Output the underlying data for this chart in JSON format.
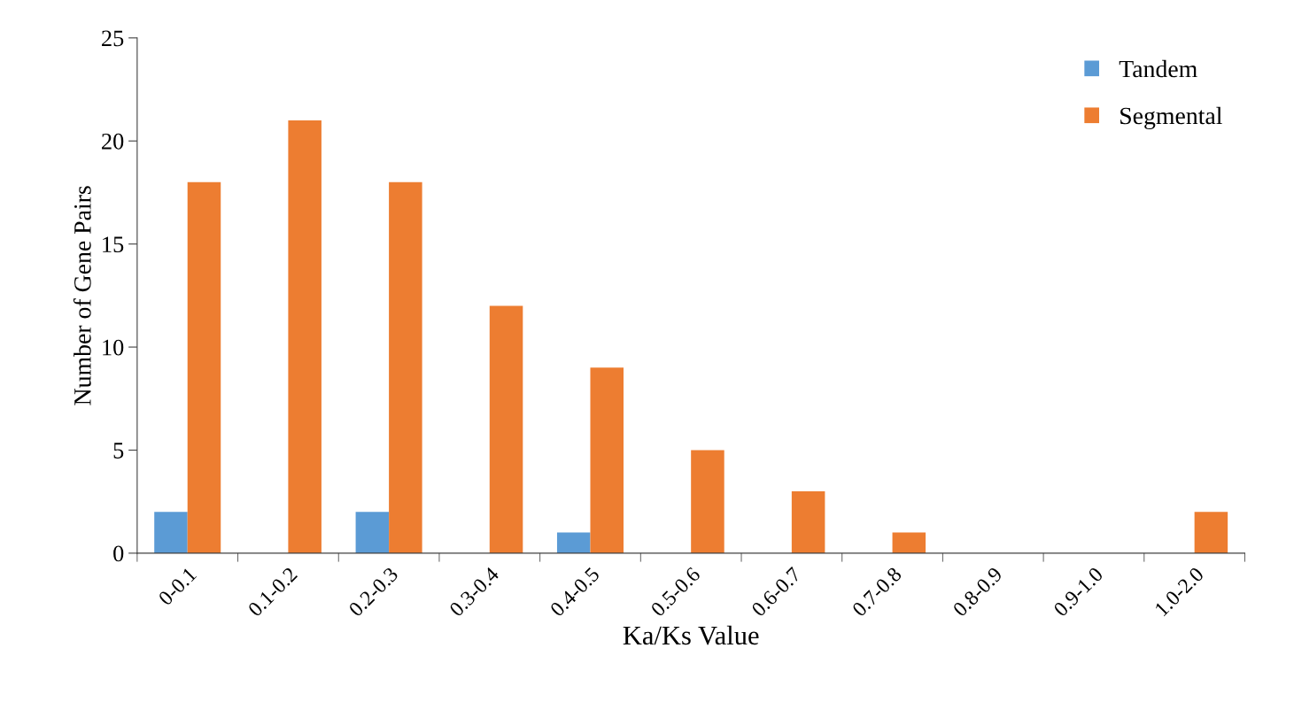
{
  "chart_data": {
    "type": "bar",
    "xlabel": "Ka/Ks Value",
    "ylabel": "Number of Gene Pairs",
    "categories": [
      "0-0.1",
      "0.1-0.2",
      "0.2-0.3",
      "0.3-0.4",
      "0.4-0.5",
      "0.5-0.6",
      "0.6-0.7",
      "0.7-0.8",
      "0.8-0.9",
      "0.9-1.0",
      "1.0-2.0"
    ],
    "series": [
      {
        "name": "Tandem",
        "color": "#5b9bd5",
        "values": [
          2,
          0,
          2,
          0,
          1,
          0,
          0,
          0,
          0,
          0,
          0
        ]
      },
      {
        "name": "Segmental",
        "color": "#ed7d31",
        "values": [
          18,
          21,
          18,
          12,
          9,
          5,
          3,
          1,
          0,
          0,
          2
        ]
      }
    ],
    "ylim": [
      0,
      25
    ],
    "yticks": [
      0,
      5,
      10,
      15,
      20,
      25
    ],
    "grid": false,
    "legend": "top right"
  }
}
